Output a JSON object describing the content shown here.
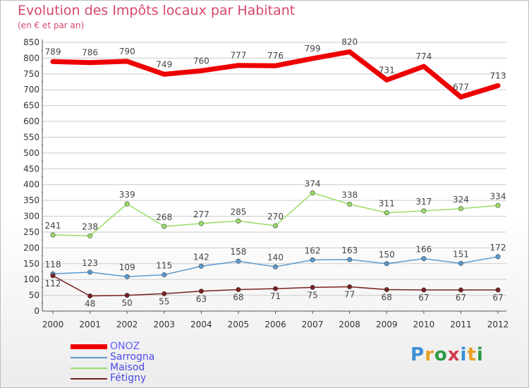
{
  "title": "Evolution des Impôts locaux par Habitant",
  "subtitle": "(en € et par an)",
  "logo_text": "Proxiti",
  "colors": {
    "title": "#d4486a",
    "grid": "#cccccc",
    "axis": "#555555",
    "tick_text": "#333333",
    "value_text": "#444444"
  },
  "chart_data": {
    "type": "line",
    "title": "Evolution des Impôts locaux par Habitant",
    "subtitle": "(en € et par an)",
    "xlabel": "",
    "ylabel": "",
    "x": [
      "2000",
      "2001",
      "2002",
      "2003",
      "2004",
      "2005",
      "2006",
      "2007",
      "2008",
      "2009",
      "2010",
      "2011",
      "2012"
    ],
    "ylim": [
      0,
      850
    ],
    "yticks": [
      0,
      50,
      100,
      150,
      200,
      250,
      300,
      350,
      400,
      450,
      500,
      550,
      600,
      650,
      700,
      750,
      800,
      850
    ],
    "grid": true,
    "legend_position": "bottom-left",
    "series": [
      {
        "name": "ONOZ",
        "color": "#ee0000",
        "values": [
          789,
          786,
          790,
          749,
          760,
          777,
          776,
          799,
          820,
          731,
          774,
          677,
          713
        ]
      },
      {
        "name": "Sarrogna",
        "color": "#5b9bd1",
        "values": [
          118,
          123,
          109,
          115,
          142,
          158,
          140,
          162,
          163,
          150,
          166,
          151,
          172
        ]
      },
      {
        "name": "Maisod",
        "color": "#99dd66",
        "values": [
          241,
          238,
          339,
          268,
          277,
          285,
          270,
          374,
          338,
          311,
          317,
          324,
          334
        ]
      },
      {
        "name": "Fétigny",
        "color": "#7a2020",
        "values": [
          112,
          48,
          50,
          55,
          63,
          68,
          71,
          75,
          77,
          68,
          67,
          67,
          67
        ]
      }
    ]
  }
}
